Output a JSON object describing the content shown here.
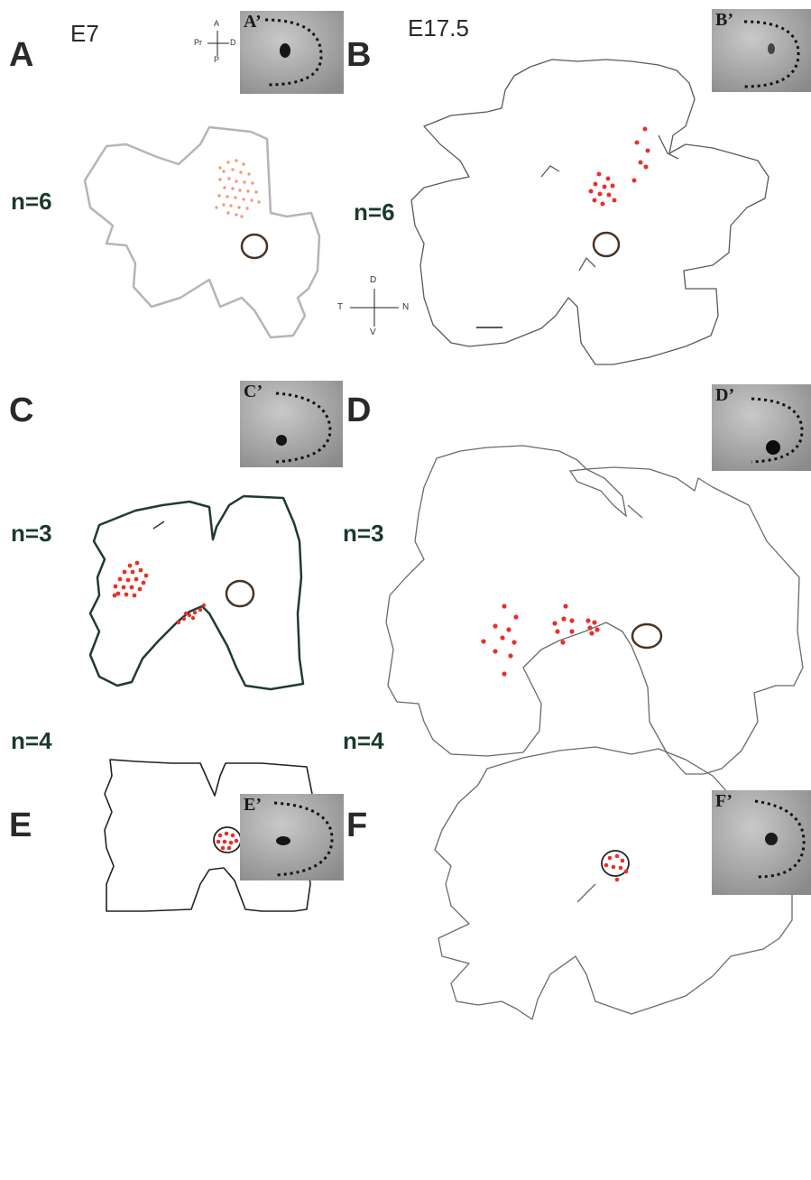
{
  "panels": {
    "A": {
      "letter": "A",
      "stage": "E7",
      "n": "n=6",
      "inset_label": "A’"
    },
    "B": {
      "letter": "B",
      "stage": "E17.5",
      "n": "n=6",
      "inset_label": "B’"
    },
    "C": {
      "letter": "C",
      "n": "n=3",
      "inset_label": "C’"
    },
    "D": {
      "letter": "D",
      "n": "n=3",
      "inset_label": "D’"
    },
    "E": {
      "letter": "E",
      "n": "n=4",
      "inset_label": "E’"
    },
    "F": {
      "letter": "F",
      "n": "n=4",
      "inset_label": "F’"
    }
  },
  "orientation_small": {
    "top": "A",
    "bottom": "P",
    "left": "Pr",
    "right": "D"
  },
  "orientation_large": {
    "top": "D",
    "bottom": "V",
    "left": "T",
    "right": "N"
  },
  "colors": {
    "dot_red": "#e8302a",
    "dot_pale": "#f39a7e",
    "outline_gray": "#b5b5b5",
    "outline_dark": "#1f3a33",
    "outline_black": "#2b2b2b",
    "optic_disc": "#4a3322"
  }
}
